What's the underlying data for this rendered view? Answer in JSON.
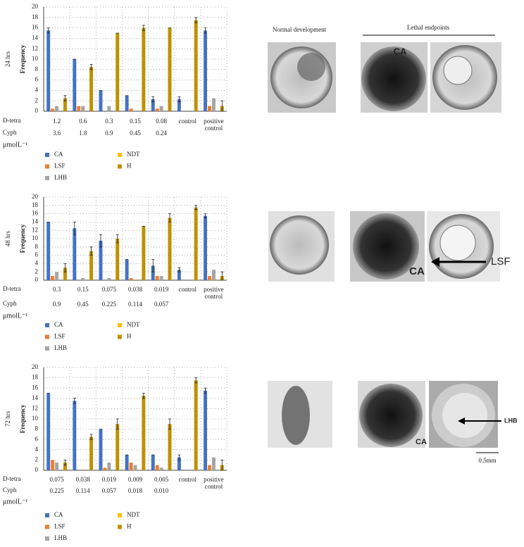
{
  "chart_data": [
    {
      "type": "bar",
      "panel_label": "24 hrs",
      "ylabel": "Frequency",
      "row_labels": [
        "D-tetra",
        "Cyph"
      ],
      "categories": [
        "1.2",
        "0.6",
        "0.3",
        "0.15",
        "0.08",
        "control",
        "positive control"
      ],
      "categories2": [
        "3.6",
        "1.8",
        "0.9",
        "0.45",
        "0.24",
        null,
        null
      ],
      "unit": "μmolL⁻¹",
      "ylim": [
        0,
        20
      ],
      "yticks": [
        0,
        2,
        4,
        6,
        8,
        10,
        12,
        14,
        16,
        18,
        20
      ],
      "grid": true,
      "series": [
        {
          "name": "CA",
          "color": "#4472c4",
          "values": [
            15.5,
            10,
            4,
            3,
            2.3,
            2.3,
            15.5
          ],
          "errors": [
            0.5,
            0,
            0,
            0,
            0.5,
            0.5,
            0.5
          ]
        },
        {
          "name": "LSF",
          "color": "#ed7d31",
          "values": [
            0.5,
            1,
            0,
            0.5,
            0.5,
            0,
            1
          ]
        },
        {
          "name": "LHB",
          "color": "#a5a5a5",
          "values": [
            1,
            1,
            1,
            0,
            1,
            0,
            2.5
          ]
        },
        {
          "name": "NDT",
          "color": "#ffc000",
          "values": [
            0,
            0,
            0,
            0,
            0,
            0,
            0
          ]
        },
        {
          "name": "H",
          "color": "#bf9000",
          "values": [
            2.5,
            8.5,
            15,
            16,
            16,
            17.5,
            1
          ],
          "errors": [
            0.5,
            0.5,
            0,
            0.5,
            0,
            0.5,
            1
          ]
        }
      ]
    },
    {
      "type": "bar",
      "panel_label": "48 hrs",
      "ylabel": "Frequency",
      "row_labels": [
        "D-tetra",
        "Cyph"
      ],
      "categories": [
        "0.3",
        "0.15",
        "0.075",
        "0.038",
        "0.019",
        "control",
        "positive control"
      ],
      "categories2": [
        "0.9",
        "0.45",
        "0.225",
        "0.114",
        "0.057",
        null,
        null
      ],
      "unit": "μmolL⁻¹",
      "ylim": [
        0,
        20
      ],
      "yticks": [
        0,
        2,
        4,
        6,
        8,
        10,
        12,
        14,
        16,
        18,
        20
      ],
      "grid": true,
      "series": [
        {
          "name": "CA",
          "color": "#4472c4",
          "values": [
            14,
            12.5,
            9.5,
            5,
            3.5,
            2.5,
            15.5
          ],
          "errors": [
            0,
            1.5,
            1.5,
            0,
            1.5,
            0.5,
            0.5
          ]
        },
        {
          "name": "LSF",
          "color": "#ed7d31",
          "values": [
            1,
            0,
            0,
            0.5,
            1,
            0,
            1
          ]
        },
        {
          "name": "LHB",
          "color": "#a5a5a5",
          "values": [
            2,
            0.5,
            0.5,
            0,
            1,
            0,
            2.5
          ]
        },
        {
          "name": "NDT",
          "color": "#ffc000",
          "values": [
            0,
            0,
            0,
            0,
            0,
            0,
            0
          ]
        },
        {
          "name": "H",
          "color": "#bf9000",
          "values": [
            3,
            7,
            10,
            13,
            15,
            17.5,
            1
          ],
          "errors": [
            1,
            1,
            1,
            0,
            1,
            0.5,
            1
          ]
        }
      ]
    },
    {
      "type": "bar",
      "panel_label": "72 hrs",
      "ylabel": "Frequency",
      "row_labels": [
        "D-tetra",
        "Cyph"
      ],
      "categories": [
        "0.075",
        "0.038",
        "0.019",
        "0.009",
        "0.005",
        "control",
        "positive control"
      ],
      "categories2": [
        "0.225",
        "0.114",
        "0.057",
        "0.018",
        "0.010",
        null,
        null
      ],
      "unit": "μmolL⁻¹",
      "ylim": [
        0,
        20
      ],
      "yticks": [
        0,
        2,
        4,
        6,
        8,
        10,
        12,
        14,
        16,
        18,
        20
      ],
      "grid": true,
      "series": [
        {
          "name": "CA",
          "color": "#4472c4",
          "values": [
            15,
            13.5,
            8,
            3,
            3,
            2.5,
            15.5
          ],
          "errors": [
            0,
            0.5,
            0,
            0,
            0,
            0.5,
            0.5
          ]
        },
        {
          "name": "LSF",
          "color": "#ed7d31",
          "values": [
            2,
            0,
            0.5,
            1.5,
            1,
            0,
            1
          ]
        },
        {
          "name": "LHB",
          "color": "#a5a5a5",
          "values": [
            1.5,
            0,
            1.5,
            1,
            0.5,
            0,
            2.5
          ]
        },
        {
          "name": "NDT",
          "color": "#ffc000",
          "values": [
            0,
            0,
            0,
            0,
            0,
            0,
            0
          ]
        },
        {
          "name": "H",
          "color": "#bf9000",
          "values": [
            1.5,
            6.5,
            9,
            14.5,
            9,
            17.5,
            1
          ],
          "errors": [
            0.5,
            0.5,
            1,
            0.5,
            1,
            0.5,
            1
          ]
        }
      ]
    }
  ],
  "images": {
    "headers": [
      "Normal development",
      "Lethal endpoints"
    ],
    "labels": [
      "CA",
      "CA",
      "LSF",
      "CA",
      "LHB"
    ],
    "scale_bar": "0.5mm"
  }
}
